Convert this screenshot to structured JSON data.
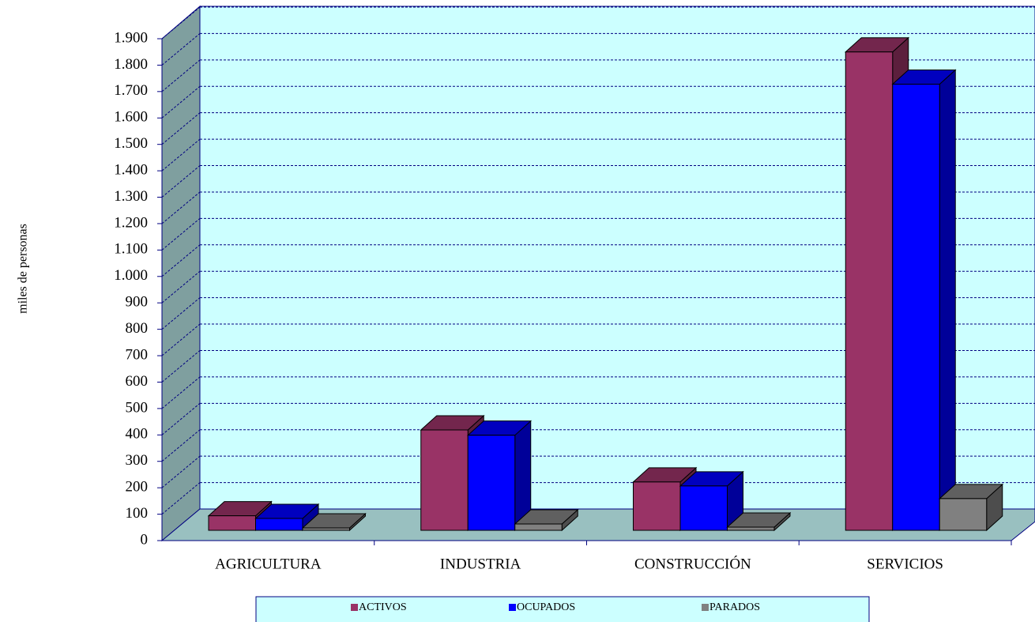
{
  "chart_data": {
    "type": "bar3d",
    "y_label": "miles de personas",
    "categories": [
      "AGRICULTURA",
      "INDUSTRIA",
      "CONSTRUCCIÓN",
      "SERVICIOS"
    ],
    "series": [
      {
        "name": "ACTIVOS",
        "color": "#993366",
        "values": [
          55,
          380,
          183,
          1811
        ]
      },
      {
        "name": "OCUPADOS",
        "color": "#0000ff",
        "values": [
          45,
          360,
          168,
          1689
        ]
      },
      {
        "name": "PARADOS",
        "color": "#808080",
        "values": [
          9,
          24,
          12,
          120
        ]
      }
    ],
    "ylim": [
      0,
      1900
    ],
    "yticks": [
      0,
      100,
      200,
      300,
      400,
      500,
      600,
      700,
      800,
      900,
      {
        "value": 1000,
        "label": "1.000"
      },
      {
        "value": 1100,
        "label": "1.100"
      },
      {
        "value": 1200,
        "label": "1.200"
      },
      {
        "value": 1300,
        "label": "1.300"
      },
      {
        "value": 1400,
        "label": "1.400"
      },
      {
        "value": 1500,
        "label": "1.500"
      },
      {
        "value": 1600,
        "label": "1.600"
      },
      {
        "value": 1700,
        "label": "1.700"
      },
      {
        "value": 1800,
        "label": "1.800"
      },
      {
        "value": 1900,
        "label": "1.900"
      }
    ],
    "grid": true,
    "legend": "bottom"
  }
}
